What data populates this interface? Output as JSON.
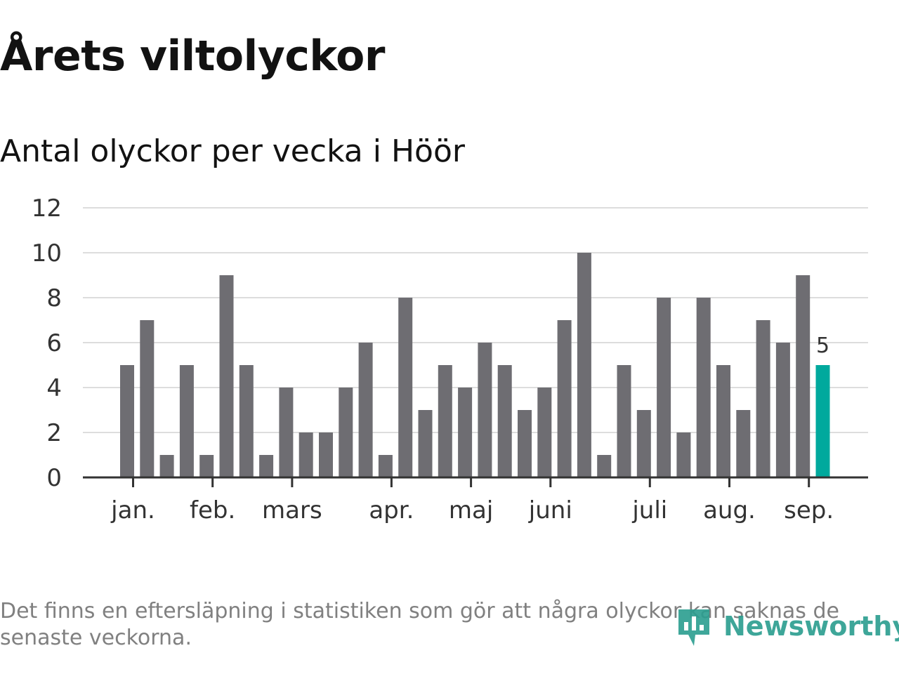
{
  "title": "Årets viltolyckor",
  "subtitle": "Antal olyckor per vecka i Höör",
  "footnote": "Det finns en eftersläpning i statistiken som gör att några olyckor kan saknas de senaste veckorna.",
  "brand": {
    "name": "Newsworthy",
    "icon": "newsworthy-logo-icon"
  },
  "colors": {
    "bar": "#6e6d72",
    "highlight": "#00a99d",
    "grid": "#dddddd",
    "axis": "#333333",
    "text": "#121212",
    "muted": "#808080",
    "brand": "#2a9d8f"
  },
  "chart_data": {
    "type": "bar",
    "values": [
      5,
      7,
      1,
      5,
      1,
      9,
      5,
      1,
      4,
      2,
      2,
      4,
      6,
      1,
      8,
      3,
      5,
      4,
      6,
      5,
      3,
      4,
      7,
      10,
      1,
      5,
      3,
      8,
      2,
      8,
      5,
      3,
      7,
      6,
      9,
      5
    ],
    "highlight_index": 35,
    "highlight_label": "5",
    "ylim": [
      0,
      12
    ],
    "yticks": [
      0,
      2,
      4,
      6,
      8,
      10,
      12
    ],
    "month_labels": [
      {
        "label": "jan.",
        "week": 0.3
      },
      {
        "label": "feb.",
        "week": 4.3
      },
      {
        "label": "mars",
        "week": 8.3
      },
      {
        "label": "apr.",
        "week": 13.3
      },
      {
        "label": "maj",
        "week": 17.3
      },
      {
        "label": "juni",
        "week": 21.3
      },
      {
        "label": "juli",
        "week": 26.3
      },
      {
        "label": "aug.",
        "week": 30.3
      },
      {
        "label": "sep.",
        "week": 34.3
      }
    ],
    "grid": true,
    "xlabel": "",
    "ylabel": ""
  }
}
